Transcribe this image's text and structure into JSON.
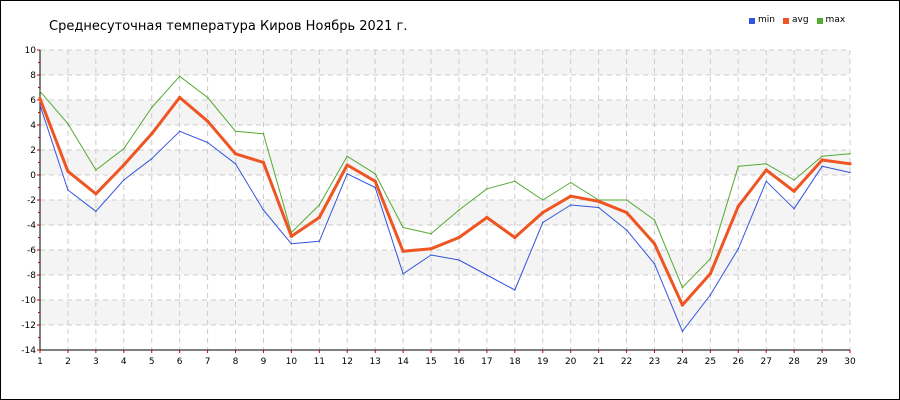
{
  "chart_data": {
    "type": "line",
    "title": "Среднесуточная температура Киров  Ноябрь 2021 г.",
    "xlabel": "",
    "ylabel": "",
    "x": [
      1,
      2,
      3,
      4,
      5,
      6,
      7,
      8,
      9,
      10,
      11,
      12,
      13,
      14,
      15,
      16,
      17,
      18,
      19,
      20,
      21,
      22,
      23,
      24,
      25,
      26,
      27,
      28,
      29,
      30
    ],
    "xlim": [
      1,
      30
    ],
    "ylim": [
      -14,
      10
    ],
    "yticks": [
      -14,
      -12,
      -10,
      -8,
      -6,
      -4,
      -2,
      0,
      2,
      4,
      6,
      8,
      10
    ],
    "grid": true,
    "legend_position": "top-right",
    "series": [
      {
        "name": "min",
        "color": "#3355dd",
        "values": [
          5.6,
          -1.2,
          -2.9,
          -0.4,
          1.3,
          3.5,
          2.6,
          0.9,
          -2.8,
          -5.5,
          -5.3,
          0.1,
          -1.0,
          -7.9,
          -6.4,
          -6.8,
          -8.0,
          -9.2,
          -3.8,
          -2.4,
          -2.6,
          -4.4,
          -7.1,
          -12.5,
          -9.6,
          -5.9,
          -0.5,
          -2.7,
          0.7,
          0.2
        ]
      },
      {
        "name": "avg",
        "color": "#ee5522",
        "values": [
          6.1,
          0.3,
          -1.5,
          0.8,
          3.3,
          6.2,
          4.3,
          1.7,
          1.0,
          -4.9,
          -3.4,
          0.8,
          -0.5,
          -6.1,
          -5.9,
          -5.0,
          -3.4,
          -5.0,
          -3.0,
          -1.7,
          -2.1,
          -3.0,
          -5.5,
          -10.4,
          -7.9,
          -2.5,
          0.4,
          -1.3,
          1.2,
          0.9
        ]
      },
      {
        "name": "max",
        "color": "#55aa33",
        "values": [
          6.7,
          4.1,
          0.4,
          2.1,
          5.4,
          7.9,
          6.2,
          3.5,
          3.3,
          -4.6,
          -2.4,
          1.5,
          0.1,
          -4.2,
          -4.7,
          -2.8,
          -1.1,
          -0.5,
          -2.0,
          -0.6,
          -2.0,
          -2.0,
          -3.6,
          -9.0,
          -6.7,
          0.7,
          0.9,
          -0.4,
          1.5,
          1.7
        ]
      }
    ]
  }
}
